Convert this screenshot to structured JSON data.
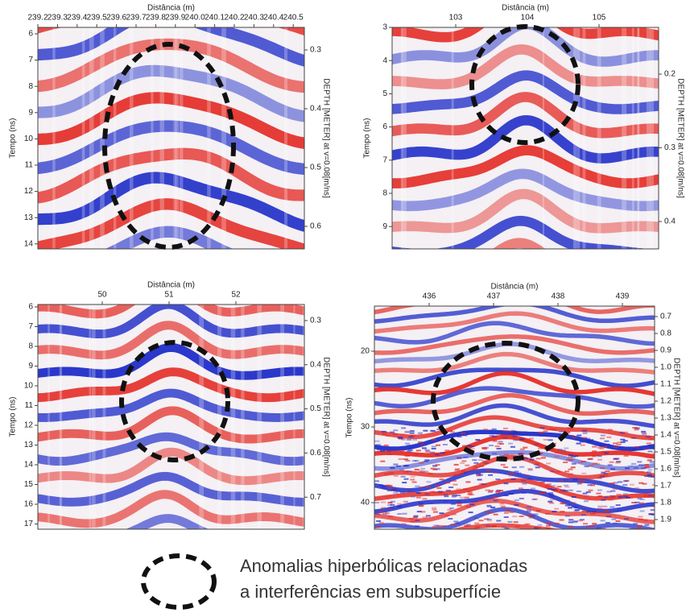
{
  "panels": [
    {
      "x_axis_label": "Distância (m)",
      "x_ticks": [
        "239.2",
        "239.3",
        "239.4",
        "239.5",
        "239.6",
        "239.7",
        "239.8",
        "239.9",
        "240.0",
        "240.1",
        "240.2",
        "240.3",
        "240.4",
        "240.5"
      ],
      "y_axis_label": "Tempo (ns)",
      "y_ticks": [
        "6",
        "7",
        "8",
        "9",
        "10",
        "11",
        "12",
        "13",
        "14"
      ],
      "y2_axis_label": "DEPTH [METER] at v=0.08[m/ns]",
      "y2_ticks": [
        "0.3",
        "0.4",
        "0.5",
        "0.6"
      ]
    },
    {
      "x_axis_label": "Distância (m)",
      "x_ticks": [
        "103",
        "104",
        "105"
      ],
      "y_axis_label": "Tempo (ns)",
      "y_ticks": [
        "3",
        "4",
        "5",
        "6",
        "7",
        "8",
        "9"
      ],
      "y2_axis_label": "DEPTH [METER] at v=0.08[m/ns]",
      "y2_ticks": [
        "0.2",
        "0.3",
        "0.4"
      ]
    },
    {
      "x_axis_label": "Distância (m)",
      "x_ticks": [
        "50",
        "51",
        "52"
      ],
      "y_axis_label": "Tempo (ns)",
      "y_ticks": [
        "6",
        "7",
        "8",
        "9",
        "10",
        "11",
        "12",
        "13",
        "14",
        "15",
        "16",
        "17"
      ],
      "y2_axis_label": "DEPTH [METER] at v=0.08[m/ns]",
      "y2_ticks": [
        "0.3",
        "0.4",
        "0.5",
        "0.6",
        "0.7"
      ]
    },
    {
      "x_axis_label": "Distância (m)",
      "x_ticks": [
        "436",
        "437",
        "438",
        "439"
      ],
      "y_axis_label": "Tempo (ns)",
      "y_ticks": [
        "20",
        "30",
        "40"
      ],
      "y2_axis_label": "DEPTH [METER] at v=0.08[m/ns]",
      "y2_ticks": [
        "0.7",
        "0.8",
        "0.9",
        "1.0",
        "1.1",
        "1.2",
        "1.3",
        "1.4",
        "1.5",
        "1.6",
        "1.7",
        "1.8",
        "1.9"
      ]
    }
  ],
  "legend": {
    "lines": [
      "Anomalias hiperbólicas relacionadas",
      "a interferências em subsuperfície"
    ]
  }
}
